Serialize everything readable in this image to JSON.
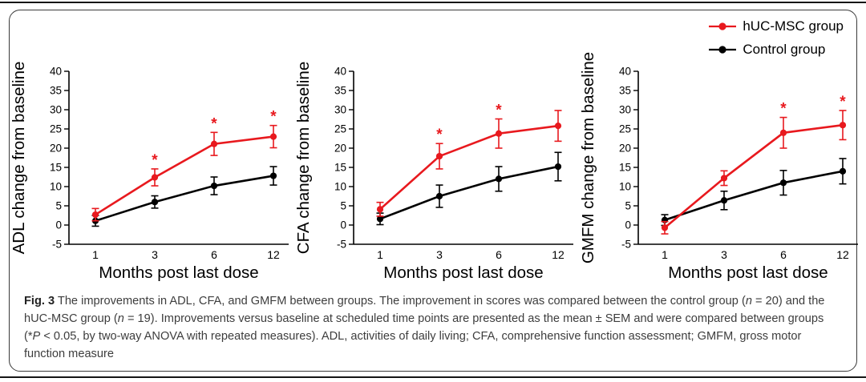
{
  "colors": {
    "huc_red": "#e8191e",
    "control_black": "#000000",
    "caption_text": "#3d3d3d",
    "panel_border": "#3a3a3a",
    "rule_black": "#151515"
  },
  "legend": {
    "items": [
      {
        "label": "hUC-MSC group",
        "color": "#e8191e",
        "marker": "line-dot"
      },
      {
        "label": "Control group",
        "color": "#000000",
        "marker": "line-dot"
      }
    ],
    "position": "top-right"
  },
  "significance_marker": "*",
  "chart_data": [
    {
      "type": "line",
      "title": "",
      "ylabel": "ADL change from baseline",
      "xlabel": "Months post last dose",
      "categories": [
        "1",
        "3",
        "6",
        "12"
      ],
      "ylim": [
        -5,
        40
      ],
      "ytick_step": 5,
      "grid": false,
      "error_bars": "SEM",
      "legend_position": "figure-top-right",
      "series": [
        {
          "name": "hUC-MSC group",
          "color": "#e8191e",
          "values": [
            2.7,
            12.4,
            21.1,
            23.0
          ],
          "sem": [
            1.6,
            2.2,
            3.0,
            2.9
          ],
          "significant": [
            false,
            true,
            true,
            true
          ]
        },
        {
          "name": "Control group",
          "color": "#000000",
          "values": [
            1.1,
            6.0,
            10.2,
            12.8
          ],
          "sem": [
            1.4,
            1.6,
            2.3,
            2.4
          ],
          "significant": [
            false,
            false,
            false,
            false
          ]
        }
      ]
    },
    {
      "type": "line",
      "title": "",
      "ylabel": "CFA change from baseline",
      "xlabel": "Months post last dose",
      "categories": [
        "1",
        "3",
        "6",
        "12"
      ],
      "ylim": [
        -5,
        40
      ],
      "ytick_step": 5,
      "grid": false,
      "error_bars": "SEM",
      "legend_position": "figure-top-right",
      "series": [
        {
          "name": "hUC-MSC group",
          "color": "#e8191e",
          "values": [
            4.1,
            17.9,
            23.8,
            25.8
          ],
          "sem": [
            1.8,
            3.3,
            3.8,
            4.0
          ],
          "significant": [
            false,
            true,
            true,
            false
          ]
        },
        {
          "name": "Control group",
          "color": "#000000",
          "values": [
            1.6,
            7.5,
            12.0,
            15.2
          ],
          "sem": [
            1.5,
            2.9,
            3.2,
            3.7
          ],
          "significant": [
            false,
            false,
            false,
            false
          ]
        }
      ]
    },
    {
      "type": "line",
      "title": "",
      "ylabel": "GMFM change from baseline",
      "xlabel": "Months post last dose",
      "categories": [
        "1",
        "3",
        "6",
        "12"
      ],
      "ylim": [
        -5,
        40
      ],
      "ytick_step": 5,
      "grid": false,
      "error_bars": "SEM",
      "legend_position": "figure-top-right",
      "series": [
        {
          "name": "hUC-MSC group",
          "color": "#e8191e",
          "values": [
            -0.7,
            12.2,
            24.0,
            26.0
          ],
          "sem": [
            1.6,
            1.9,
            4.0,
            3.8
          ],
          "significant": [
            false,
            false,
            true,
            true
          ]
        },
        {
          "name": "Control group",
          "color": "#000000",
          "values": [
            1.3,
            6.4,
            11.0,
            14.0
          ],
          "sem": [
            1.4,
            2.4,
            3.2,
            3.3
          ],
          "significant": [
            false,
            false,
            false,
            false
          ]
        }
      ]
    }
  ],
  "caption": {
    "segments": [
      {
        "text": "Fig. 3",
        "bold": true
      },
      {
        "text": " The improvements in ADL, CFA, and GMFM between groups. The improvement in scores was compared between the control group ("
      },
      {
        "text": "n",
        "italic": true
      },
      {
        "text": " = 20) and the hUC-MSC group ("
      },
      {
        "text": "n",
        "italic": true
      },
      {
        "text": " = 19). Improvements versus baseline at scheduled time points are presented as the mean ± SEM and were compared between groups (*"
      },
      {
        "text": "P",
        "italic": true
      },
      {
        "text": " < 0.05, by two-way ANOVA with repeated measures). ADL, activities of daily living; CFA, comprehensive function assessment; GMFM, gross motor function measure"
      }
    ]
  }
}
